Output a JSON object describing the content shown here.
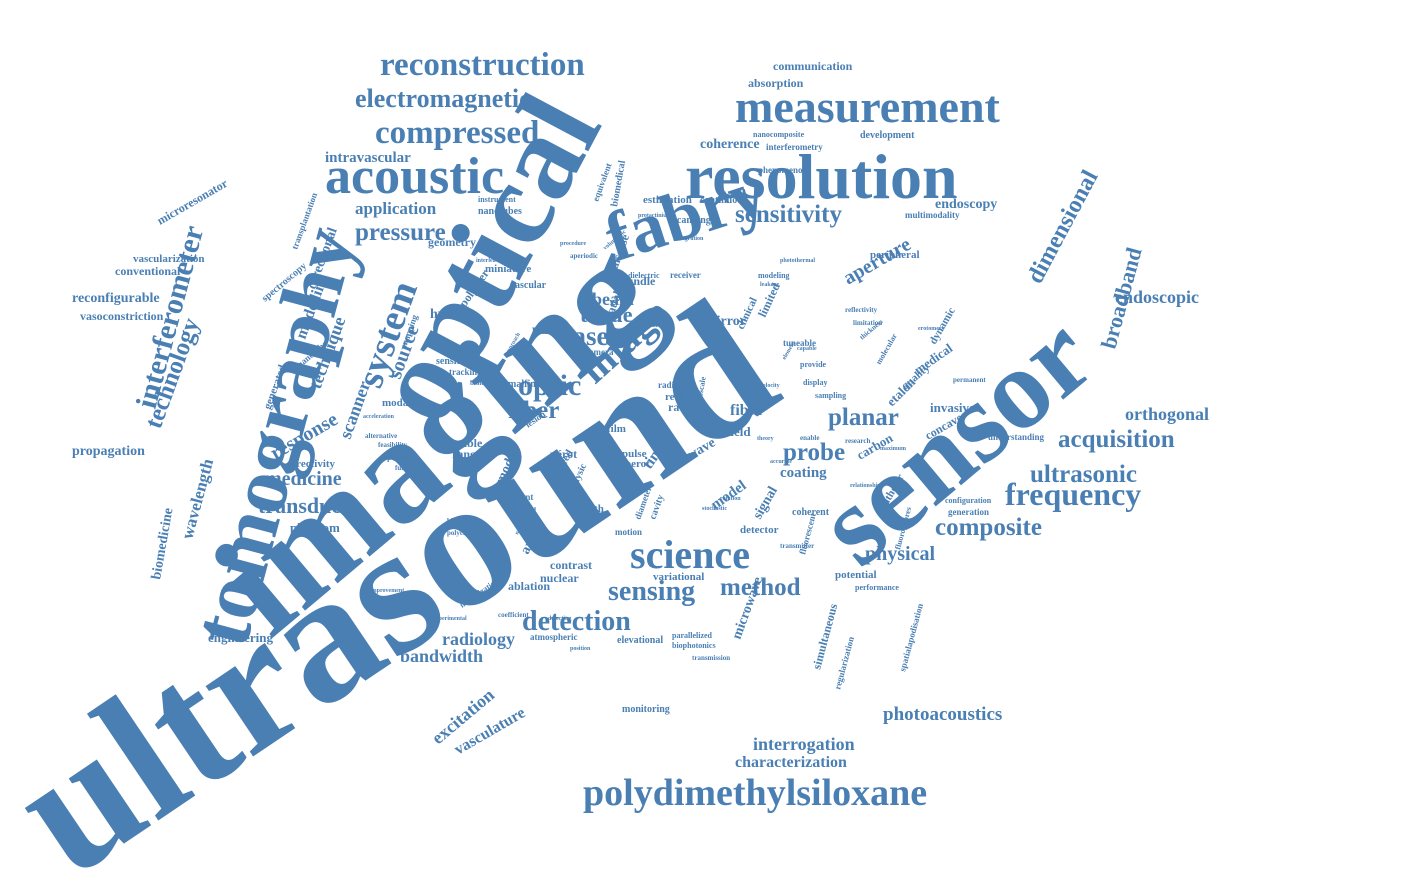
{
  "theme": {
    "word_color": "#4a7fb3",
    "background": "#ffffff"
  },
  "words": [
    "ultrasound",
    "imaging",
    "optical",
    "sensor",
    "tomography",
    "fabry",
    "resolution",
    "measurement",
    "acoustic",
    "compressed",
    "reconstruction",
    "electromagnetic",
    "science",
    "polydimethylsiloxane",
    "sensitivity",
    "frequency",
    "pressure",
    "system",
    "interferometer",
    "technology",
    "image",
    "optic",
    "fiber",
    "laser",
    "tissue",
    "acquisition",
    "ultrasonic",
    "composite",
    "probe",
    "planar",
    "medicine",
    "transducer",
    "detection",
    "sensing",
    "method",
    "physical",
    "dimensional",
    "broadband",
    "endoscopic",
    "orthogonal",
    "photoacoustics",
    "interrogation",
    "characterization",
    "bandwidth",
    "radiology",
    "excitation",
    "vasculature",
    "aperture",
    "endoscopy",
    "coherence",
    "intravascular",
    "application",
    "beam",
    "response",
    "source",
    "scanner",
    "technique",
    "modelling",
    "directional",
    "wavelength",
    "biomedicine",
    "propagation",
    "engineering",
    "reconfigurable",
    "conventional",
    "vascularization",
    "vasoconstriction",
    "microresonator",
    "spectroscopy",
    "communication",
    "absorption",
    "development",
    "interferometry",
    "nanocomposite",
    "geometry",
    "miniature",
    "vascular",
    "pdms",
    "human",
    "mirror",
    "fibre",
    "field",
    "coating",
    "model",
    "signal",
    "detector",
    "coherent",
    "wave",
    "time",
    "mode",
    "array",
    "depth",
    "contrast",
    "nuclear",
    "variational",
    "ablation",
    "atmospheric",
    "elevational",
    "monitoring",
    "microwave",
    "simultaneous",
    "regularization",
    "spatialapodisation",
    "potential",
    "carbon",
    "catheter",
    "concave",
    "invasive",
    "etalon",
    "quality",
    "dynamic",
    "peripheral",
    "multimodality",
    "continuous",
    "phenomenon",
    "estimation",
    "scanning",
    "equivalent",
    "biomedical",
    "nanotubes",
    "instrument",
    "transplantation",
    "directivity",
    "generated",
    "nanotube",
    "modality",
    "flexible",
    "range",
    "film",
    "rate",
    "real",
    "pérot",
    "perot",
    "pulse",
    "speed",
    "physic",
    "cavity",
    "diameter",
    "motion",
    "nanoscale",
    "phantom",
    "fluorescent",
    "parallelized",
    "biophotonics",
    "transmission",
    "performance",
    "generation",
    "configuration",
    "understanding",
    "fluorophores",
    "dielectric",
    "receiver",
    "modeling",
    "clinical",
    "limited",
    "tuneable",
    "display",
    "sampling",
    "provide",
    "reflectivity",
    "permanent",
    "medical",
    "camera",
    "sensitive",
    "tracking",
    "biology",
    "malfina",
    "lesion",
    "radio",
    "bundle",
    "disease",
    "spatial",
    "polymer",
    "mapping",
    "alternative",
    "feasibility",
    "spectrum",
    "functional",
    "biological",
    "polycrystic",
    "minimization",
    "coefficient",
    "improvement",
    "acceleration",
    "present",
    "handheld",
    "nanoantenna",
    "experimental",
    "position",
    "detecting",
    "stochastic",
    "rotation",
    "transmitter",
    "relationship",
    "enable",
    "research",
    "maximum",
    "velocity",
    "capable",
    "element",
    "molecular",
    "thickness",
    "leakage",
    "sparsity",
    "approach",
    "theory",
    "protactinium",
    "integration",
    "procedure",
    "aperiodic",
    "volumetric",
    "interleaved",
    "carrier",
    "photothermal",
    "erotomers",
    "limitation",
    "accurate"
  ]
}
